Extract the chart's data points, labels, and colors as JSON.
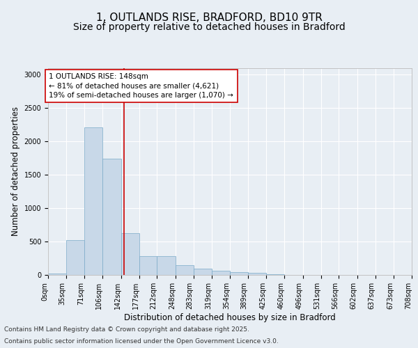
{
  "title1": "1, OUTLANDS RISE, BRADFORD, BD10 9TR",
  "title2": "Size of property relative to detached houses in Bradford",
  "xlabel": "Distribution of detached houses by size in Bradford",
  "ylabel": "Number of detached properties",
  "bar_color": "#c8d8e8",
  "bar_edge_color": "#7aaac8",
  "vline_x": 148,
  "vline_color": "#cc0000",
  "bin_edges": [
    0,
    35,
    71,
    106,
    142,
    177,
    212,
    248,
    283,
    319,
    354,
    389,
    425,
    460,
    496,
    531,
    566,
    602,
    637,
    673,
    708
  ],
  "bar_heights": [
    25,
    520,
    2210,
    1745,
    630,
    285,
    280,
    145,
    90,
    65,
    45,
    30,
    10,
    5,
    3,
    2,
    1,
    1,
    0,
    0
  ],
  "tick_labels": [
    "0sqm",
    "35sqm",
    "71sqm",
    "106sqm",
    "142sqm",
    "177sqm",
    "212sqm",
    "248sqm",
    "283sqm",
    "319sqm",
    "354sqm",
    "389sqm",
    "425sqm",
    "460sqm",
    "496sqm",
    "531sqm",
    "566sqm",
    "602sqm",
    "637sqm",
    "673sqm",
    "708sqm"
  ],
  "annotation_line1": "1 OUTLANDS RISE: 148sqm",
  "annotation_line2": "← 81% of detached houses are smaller (4,621)",
  "annotation_line3": "19% of semi-detached houses are larger (1,070) →",
  "annotation_box_color": "#cc0000",
  "annotation_box_bg": "#ffffff",
  "footnote1": "Contains HM Land Registry data © Crown copyright and database right 2025.",
  "footnote2": "Contains public sector information licensed under the Open Government Licence v3.0.",
  "ylim": [
    0,
    3100
  ],
  "yticks": [
    0,
    500,
    1000,
    1500,
    2000,
    2500,
    3000
  ],
  "bg_color": "#e8eef4",
  "plot_bg_color": "#e8eef4",
  "grid_color": "#ffffff",
  "title_fontsize": 11,
  "subtitle_fontsize": 10,
  "axis_label_fontsize": 8.5,
  "tick_fontsize": 7,
  "annotation_fontsize": 7.5,
  "footnote_fontsize": 6.5
}
